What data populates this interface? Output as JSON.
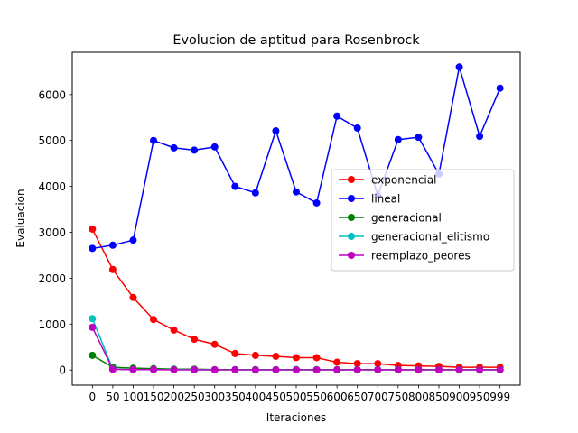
{
  "chart_data": {
    "type": "line",
    "title": "Evolucion de aptitud para Rosenbrock",
    "xlabel": "Iteraciones",
    "ylabel": "Evaluacion",
    "x": [
      0,
      50,
      100,
      150,
      200,
      250,
      300,
      350,
      400,
      450,
      500,
      550,
      600,
      650,
      700,
      750,
      800,
      850,
      900,
      950,
      999
    ],
    "x_tick_labels": [
      "0",
      "50",
      "100",
      "150",
      "200",
      "250",
      "300",
      "350",
      "400",
      "450",
      "500",
      "550",
      "600",
      "650",
      "700",
      "750",
      "800",
      "850",
      "900",
      "950",
      "999"
    ],
    "y_ticks": [
      0,
      1000,
      2000,
      3000,
      4000,
      5000,
      6000
    ],
    "y_tick_labels": [
      "0",
      "1000",
      "2000",
      "3000",
      "4000",
      "5000",
      "6000"
    ],
    "ylim": [
      -330,
      6920
    ],
    "grid": false,
    "legend_position": "center-right",
    "series": [
      {
        "name": "exponencial",
        "color": "#ff0000",
        "values": [
          3070,
          2190,
          1580,
          1100,
          870,
          670,
          560,
          360,
          320,
          300,
          270,
          270,
          170,
          140,
          140,
          100,
          90,
          80,
          60,
          60,
          60
        ]
      },
      {
        "name": "lineal",
        "color": "#0000ff",
        "values": [
          2650,
          2720,
          2830,
          5000,
          4840,
          4790,
          4860,
          4000,
          3860,
          5210,
          3880,
          3640,
          5530,
          5270,
          3800,
          5020,
          5070,
          4270,
          6600,
          5090,
          6140
        ]
      },
      {
        "name": "generacional",
        "color": "#008000",
        "values": [
          320,
          60,
          40,
          30,
          20,
          20,
          10,
          10,
          10,
          10,
          10,
          10,
          10,
          10,
          10,
          10,
          10,
          10,
          10,
          10,
          10
        ]
      },
      {
        "name": "generacional_elitismo",
        "color": "#00bfbf",
        "values": [
          1120,
          20,
          10,
          10,
          10,
          10,
          5,
          5,
          5,
          5,
          5,
          5,
          5,
          5,
          5,
          5,
          5,
          5,
          5,
          5,
          5
        ]
      },
      {
        "name": "reemplazo_peores",
        "color": "#bf00bf",
        "values": [
          930,
          15,
          10,
          10,
          5,
          5,
          5,
          5,
          5,
          5,
          5,
          5,
          5,
          5,
          5,
          5,
          5,
          5,
          5,
          5,
          5
        ]
      }
    ]
  }
}
